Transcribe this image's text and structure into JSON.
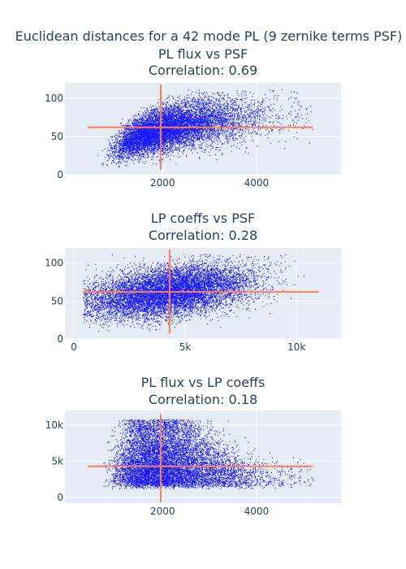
{
  "figure": {
    "title": "Euclidean distances for a 42 mode PL (9 zernike terms PSF)"
  },
  "colors": {
    "plot_bg": "#e5ecf6",
    "grid": "#ffffff",
    "points": "#0000ff",
    "mean_lines": "#ff7f50",
    "text": "#2a3f5f"
  },
  "chart_data": [
    {
      "type": "scatter",
      "title": "PL flux vs PSF",
      "subtitle": "Correlation: 0.69",
      "xlabel": "",
      "ylabel": "",
      "xlim": [
        -80,
        5800
      ],
      "ylim": [
        0,
        120
      ],
      "xticks": [
        {
          "value": 2000,
          "label": "2000"
        },
        {
          "value": 4000,
          "label": "4000"
        }
      ],
      "yticks": [
        {
          "value": 0,
          "label": "0"
        },
        {
          "value": 50,
          "label": "50"
        },
        {
          "value": 100,
          "label": "100"
        }
      ],
      "grid": true,
      "cloud": {
        "x_range": [
          400,
          5200
        ],
        "y_range": [
          10,
          112
        ],
        "n_points_approx": 100000
      },
      "mean_lines": {
        "x": 1960,
        "y": 62,
        "hline_x_extent": [
          400,
          5200
        ],
        "vline_y_extent": [
          7,
          118
        ]
      }
    },
    {
      "type": "scatter",
      "title": "LP coeffs vs PSF",
      "subtitle": "Correlation: 0.28",
      "xlabel": "",
      "ylabel": "",
      "xlim": [
        -400,
        12000
      ],
      "ylim": [
        0,
        120
      ],
      "xticks": [
        {
          "value": 0,
          "label": "0"
        },
        {
          "value": 5000,
          "label": "5k"
        },
        {
          "value": 10000,
          "label": "10k"
        }
      ],
      "yticks": [
        {
          "value": 0,
          "label": "0"
        },
        {
          "value": 50,
          "label": "50"
        },
        {
          "value": 100,
          "label": "100"
        }
      ],
      "grid": true,
      "cloud": {
        "x_range": [
          400,
          11000
        ],
        "y_range": [
          10,
          112
        ],
        "n_points_approx": 100000
      },
      "mean_lines": {
        "x": 4300,
        "y": 62,
        "hline_x_extent": [
          400,
          11000
        ],
        "vline_y_extent": [
          7,
          118
        ]
      }
    },
    {
      "type": "scatter",
      "title": "PL flux vs LP coeffs",
      "subtitle": "Correlation: 0.18",
      "xlabel": "",
      "ylabel": "",
      "xlim": [
        -80,
        5800
      ],
      "ylim": [
        -800,
        12000
      ],
      "xticks": [
        {
          "value": 2000,
          "label": "2000"
        },
        {
          "value": 4000,
          "label": "4000"
        }
      ],
      "yticks": [
        {
          "value": 0,
          "label": "0"
        },
        {
          "value": 5000,
          "label": "5k"
        },
        {
          "value": 10000,
          "label": "10k"
        }
      ],
      "grid": true,
      "cloud": {
        "x_range": [
          400,
          5200
        ],
        "y_range": [
          400,
          10800
        ],
        "n_points_approx": 100000
      },
      "mean_lines": {
        "x": 1960,
        "y": 4300,
        "hline_x_extent": [
          400,
          5200
        ],
        "vline_y_extent": [
          -700,
          11500
        ]
      }
    }
  ]
}
